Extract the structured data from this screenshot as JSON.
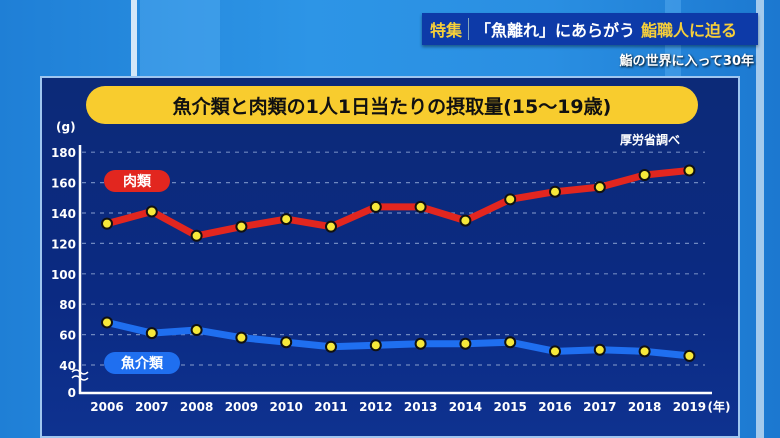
{
  "banner": {
    "tag": "特集",
    "headline": "「魚離れ」にあらがう",
    "highlight": "鮨職人に迫る",
    "subtitle": "鮨の世界に入って30年"
  },
  "chart_data": {
    "type": "line",
    "title": "魚介類と肉類の1人1日当たりの摂取量(15～19歳)",
    "source": "厚労省調べ",
    "ylabel": "(g)",
    "xlabel_unit": "(年)",
    "ylim": [
      0,
      180
    ],
    "yticks": [
      "0",
      "40",
      "60",
      "80",
      "100",
      "120",
      "140",
      "160",
      "180"
    ],
    "axis_break": "0-40",
    "categories": [
      "2006",
      "2007",
      "2008",
      "2009",
      "2010",
      "2011",
      "2012",
      "2013",
      "2014",
      "2015",
      "2016",
      "2017",
      "2018",
      "2019"
    ],
    "series": [
      {
        "name": "肉類",
        "color": "#e2261f",
        "values": [
          133,
          141,
          125,
          131,
          136,
          131,
          144,
          144,
          135,
          149,
          154,
          157,
          165,
          168
        ]
      },
      {
        "name": "魚介類",
        "color": "#1f6ff0",
        "values": [
          68,
          61,
          63,
          58,
          55,
          52,
          53,
          54,
          54,
          55,
          49,
          50,
          49,
          46
        ]
      }
    ],
    "grid": true
  }
}
